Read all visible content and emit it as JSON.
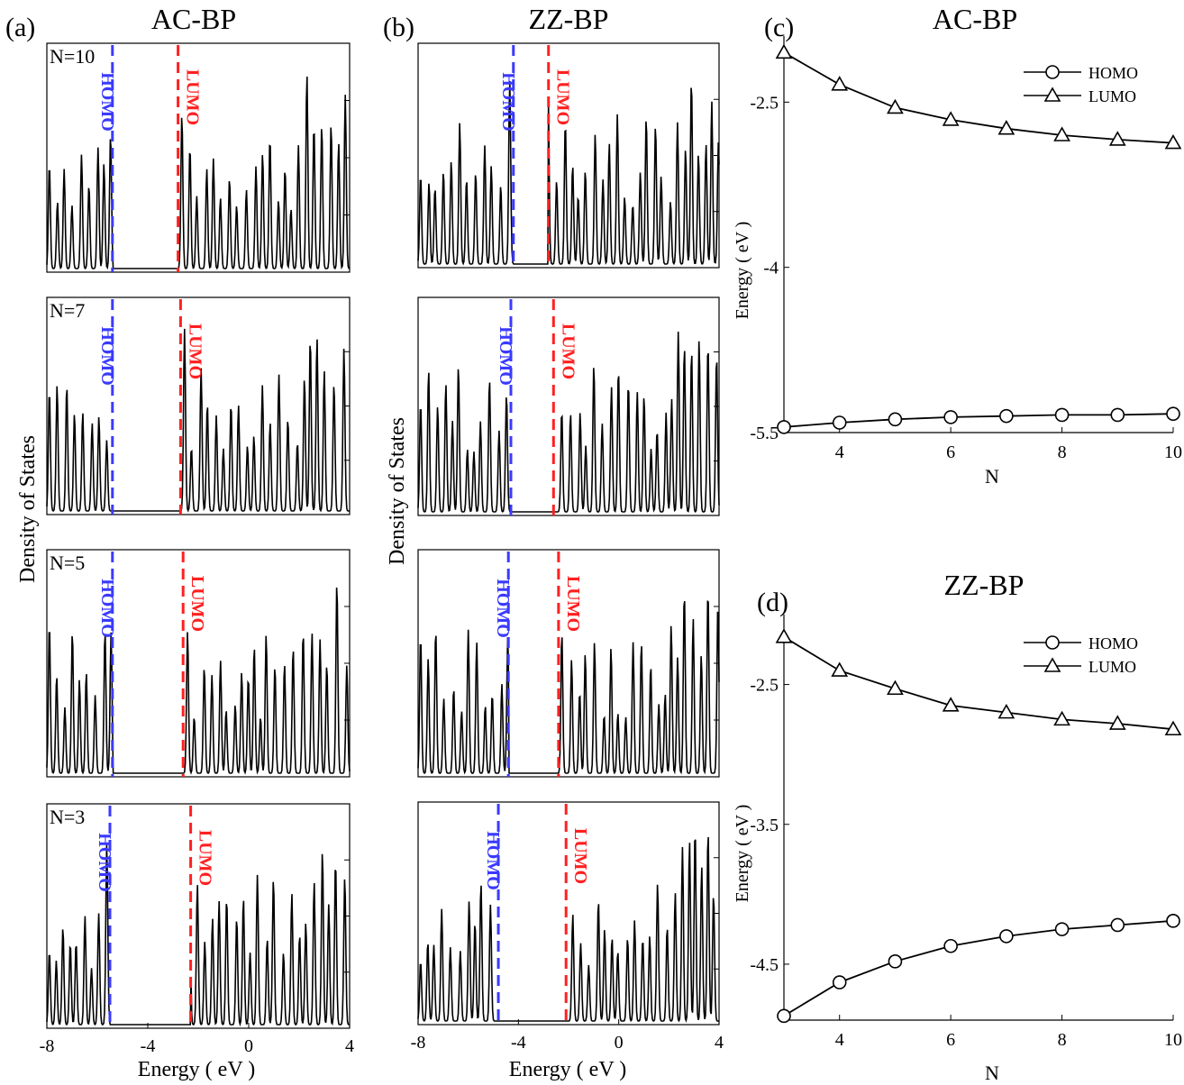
{
  "figure": {
    "shared_ylabel_left": "Density of States",
    "shared_ylabel_mid": "Density of States",
    "dos_xlabel": "Energy ( eV )",
    "homo_color": "#3a3aff",
    "lumo_color": "#ff2020",
    "curve_color": "#000000"
  },
  "panels": {
    "a": {
      "label": "(a)",
      "title": "AC-BP"
    },
    "b": {
      "label": "(b)",
      "title": "ZZ-BP"
    },
    "c": {
      "label": "(c)",
      "title": "AC-BP"
    },
    "d": {
      "label": "(d)",
      "title": "ZZ-BP"
    }
  },
  "chart_data": [
    {
      "type": "line",
      "panel": "a",
      "title": "AC-BP",
      "xlabel": "Energy ( eV )",
      "ylabel": "Density of States",
      "xlim": [
        -8,
        4
      ],
      "xticks": [
        "-8",
        "-4",
        "0",
        "4"
      ],
      "rows": [
        {
          "label": "N=10",
          "homo": -5.4,
          "lumo": -2.8,
          "homo_text": "HOMO",
          "lumo_text": "LUMO"
        },
        {
          "label": "N=7",
          "homo": -5.4,
          "lumo": -2.7,
          "homo_text": "HOMO",
          "lumo_text": "LUMO"
        },
        {
          "label": "N=5",
          "homo": -5.4,
          "lumo": -2.6,
          "homo_text": "HOMO",
          "lumo_text": "LUMO"
        },
        {
          "label": "N=3",
          "homo": -5.5,
          "lumo": -2.3,
          "homo_text": "HOMO",
          "lumo_text": "LUMO"
        }
      ]
    },
    {
      "type": "line",
      "panel": "b",
      "title": "ZZ-BP",
      "xlabel": "Energy ( eV )",
      "ylabel": "Density of States",
      "xlim": [
        -8,
        4
      ],
      "xticks": [
        "-8",
        "-4",
        "0",
        "4"
      ],
      "rows": [
        {
          "label": "",
          "homo": -4.2,
          "lumo": -2.8,
          "homo_text": "HOMO",
          "lumo_text": "LUMO"
        },
        {
          "label": "",
          "homo": -4.3,
          "lumo": -2.6,
          "homo_text": "HOMO",
          "lumo_text": "LUMO"
        },
        {
          "label": "",
          "homo": -4.4,
          "lumo": -2.4,
          "homo_text": "HOMO",
          "lumo_text": "LUMO"
        },
        {
          "label": "",
          "homo": -4.8,
          "lumo": -2.1,
          "homo_text": "HOMO",
          "lumo_text": "LUMO"
        }
      ]
    },
    {
      "type": "line",
      "panel": "c",
      "title": "AC-BP",
      "xlabel": "N",
      "ylabel": "Energy ( eV )",
      "x": [
        3,
        4,
        5,
        6,
        7,
        8,
        9,
        10
      ],
      "xlim": [
        3,
        10
      ],
      "ylim": [
        -5.5,
        -1.9
      ],
      "xticks": [
        4,
        6,
        8,
        10
      ],
      "yticks": [
        -2.5,
        -4,
        -5.5
      ],
      "ytick_labels": [
        "-2.5",
        "-4",
        "-5.5"
      ],
      "legend": "top-right",
      "series": [
        {
          "name": "HOMO",
          "marker": "circle",
          "values": [
            -5.45,
            -5.41,
            -5.38,
            -5.36,
            -5.35,
            -5.34,
            -5.34,
            -5.33
          ]
        },
        {
          "name": "LUMO",
          "marker": "triangle",
          "values": [
            -2.05,
            -2.34,
            -2.55,
            -2.66,
            -2.74,
            -2.8,
            -2.84,
            -2.87
          ]
        }
      ]
    },
    {
      "type": "line",
      "panel": "d",
      "title": "ZZ-BP",
      "xlabel": "N",
      "ylabel": "Energy ( eV )",
      "x": [
        3,
        4,
        5,
        6,
        7,
        8,
        9,
        10
      ],
      "xlim": [
        3,
        10
      ],
      "ylim": [
        -4.9,
        -2.0
      ],
      "xticks": [
        4,
        6,
        8,
        10
      ],
      "yticks": [
        -2.5,
        -3.5,
        -4.5
      ],
      "ytick_labels": [
        "-2.5",
        "-3.5",
        "-4.5"
      ],
      "legend": "top-right",
      "series": [
        {
          "name": "HOMO",
          "marker": "circle",
          "values": [
            -4.87,
            -4.63,
            -4.48,
            -4.37,
            -4.3,
            -4.25,
            -4.22,
            -4.19
          ]
        },
        {
          "name": "LUMO",
          "marker": "triangle",
          "values": [
            -2.16,
            -2.4,
            -2.53,
            -2.65,
            -2.7,
            -2.75,
            -2.78,
            -2.82
          ]
        }
      ]
    }
  ]
}
